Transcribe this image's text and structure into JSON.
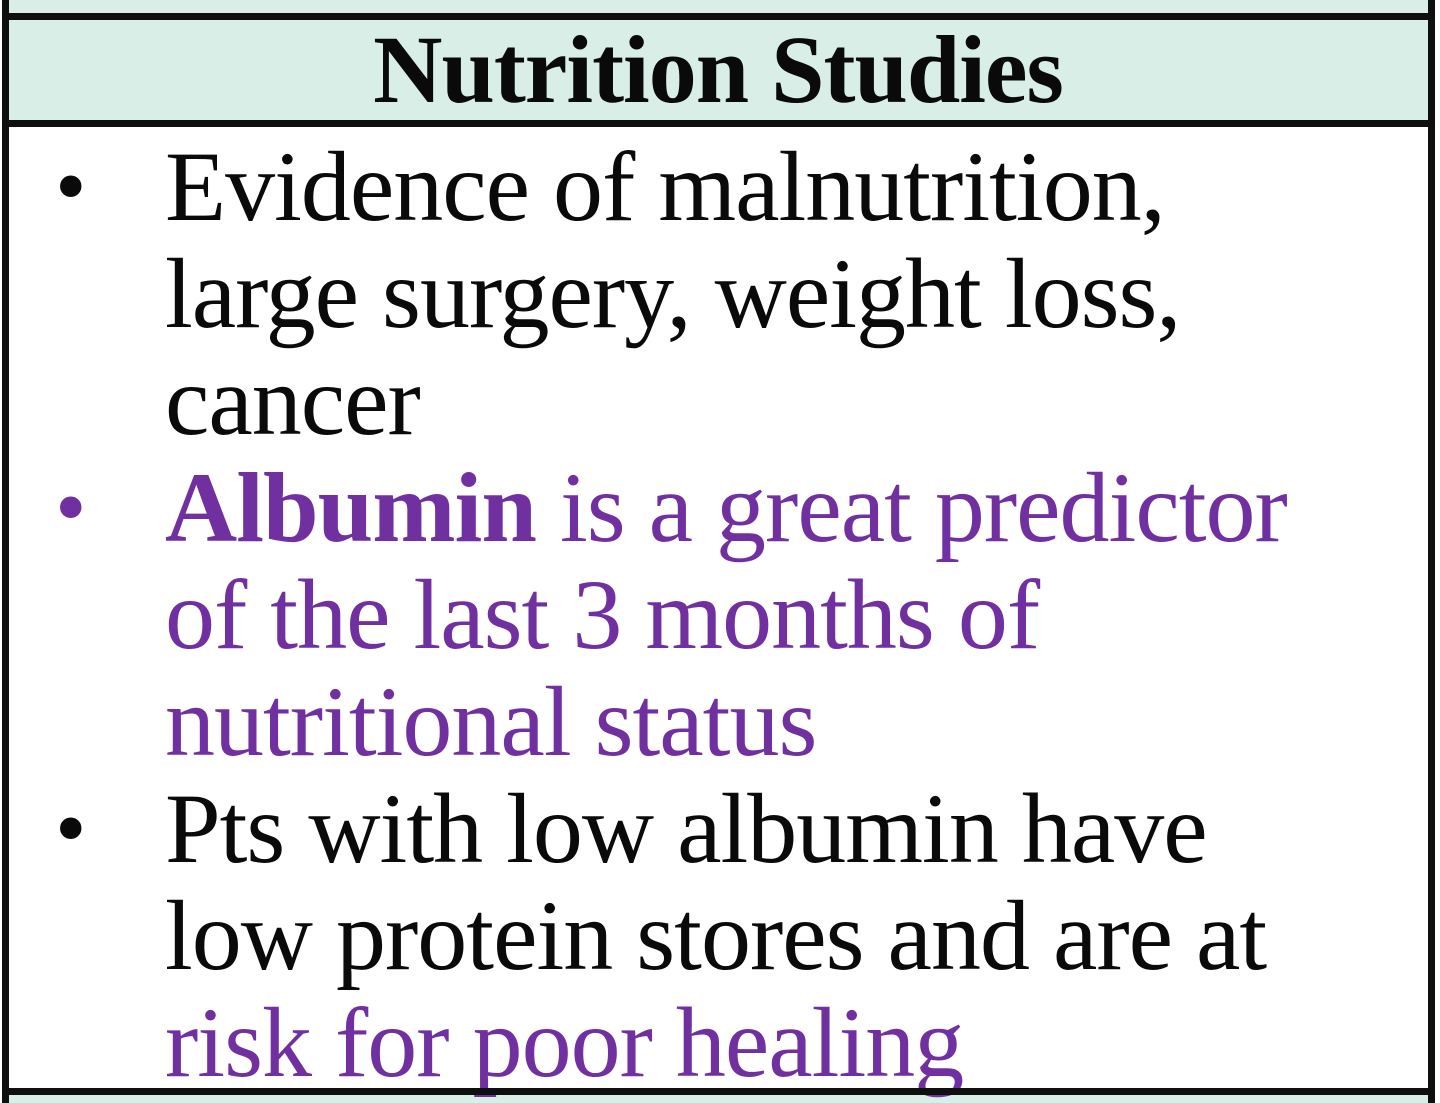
{
  "panel": {
    "header": {
      "title": "Nutrition Studies"
    },
    "bullet_glyph": "•",
    "items": [
      {
        "text": "Evidence of malnutrition,\nlarge surgery, weight loss,\ncancer"
      },
      {
        "lead": "Albumin",
        "rest": " is a great predictor\nof the last 3 months of\nnutritional status"
      },
      {
        "lead": "Pts with low albumin have\nlow protein stores and are at\n",
        "highlight": "risk for poor healing"
      }
    ],
    "colors": {
      "header_bg": "#d8eee6",
      "accent_purple": "#7030a0",
      "text": "#0a0a0a",
      "border": "#0f0f0f"
    }
  }
}
